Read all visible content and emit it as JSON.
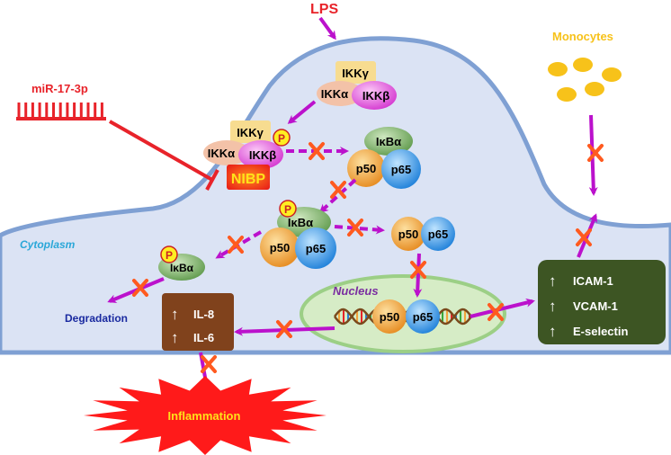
{
  "labels": {
    "lps": "LPS",
    "monocytes": "Monocytes",
    "mirna": "miR-17-3p",
    "cytoplasm": "Cytoplasm",
    "nucleus": "Nucleus",
    "degradation": "Degradation",
    "inflammation": "Inflammation",
    "nibp": "NIBP",
    "phospho": "P"
  },
  "proteins": {
    "ikkg": "IKKγ",
    "ikka": "IKKα",
    "ikkb": "IKKβ",
    "ikba": "IκBα",
    "p50": "p50",
    "p65": "p65"
  },
  "cytokine_box": {
    "arrow": "↑",
    "il8": "IL-8",
    "il6": "IL-6"
  },
  "adhesion_box": {
    "arrow": "↑",
    "icam": "ICAM-1",
    "vcam": "VCAM-1",
    "eselectin": "E-selectin"
  },
  "colors": {
    "cell_fill": "#dbe3f4",
    "cell_border": "#7fa0d3",
    "arrow": "#bb11cc",
    "block_x": "#ff5a1f",
    "inhibit": "#e8232a",
    "lps": "#e8232a",
    "monocytes": "#f7c21a",
    "nucleus_fill": "#d6ecc6",
    "nucleus_border": "#9ccf86",
    "cytoplasm_text": "#2aa7d8",
    "nucleus_text": "#7a2ea0",
    "degradation_text": "#1a2aa0",
    "cytokine_box": "#80421c",
    "adhesion_box": "#3d5523",
    "inflammation": "#ff1a1a",
    "inflammation_text": "#ffe21a",
    "nibp_fill": "#ff2a1a",
    "nibp_text": "#ffe21a",
    "ikkg": "#f7dc90",
    "ikka": "#f3c2a8",
    "ikkb": "#e566e0",
    "ikba": "#7fb36a",
    "p50": "#f2a33a",
    "p65": "#3a97e8",
    "phospho": "#ffee22"
  }
}
